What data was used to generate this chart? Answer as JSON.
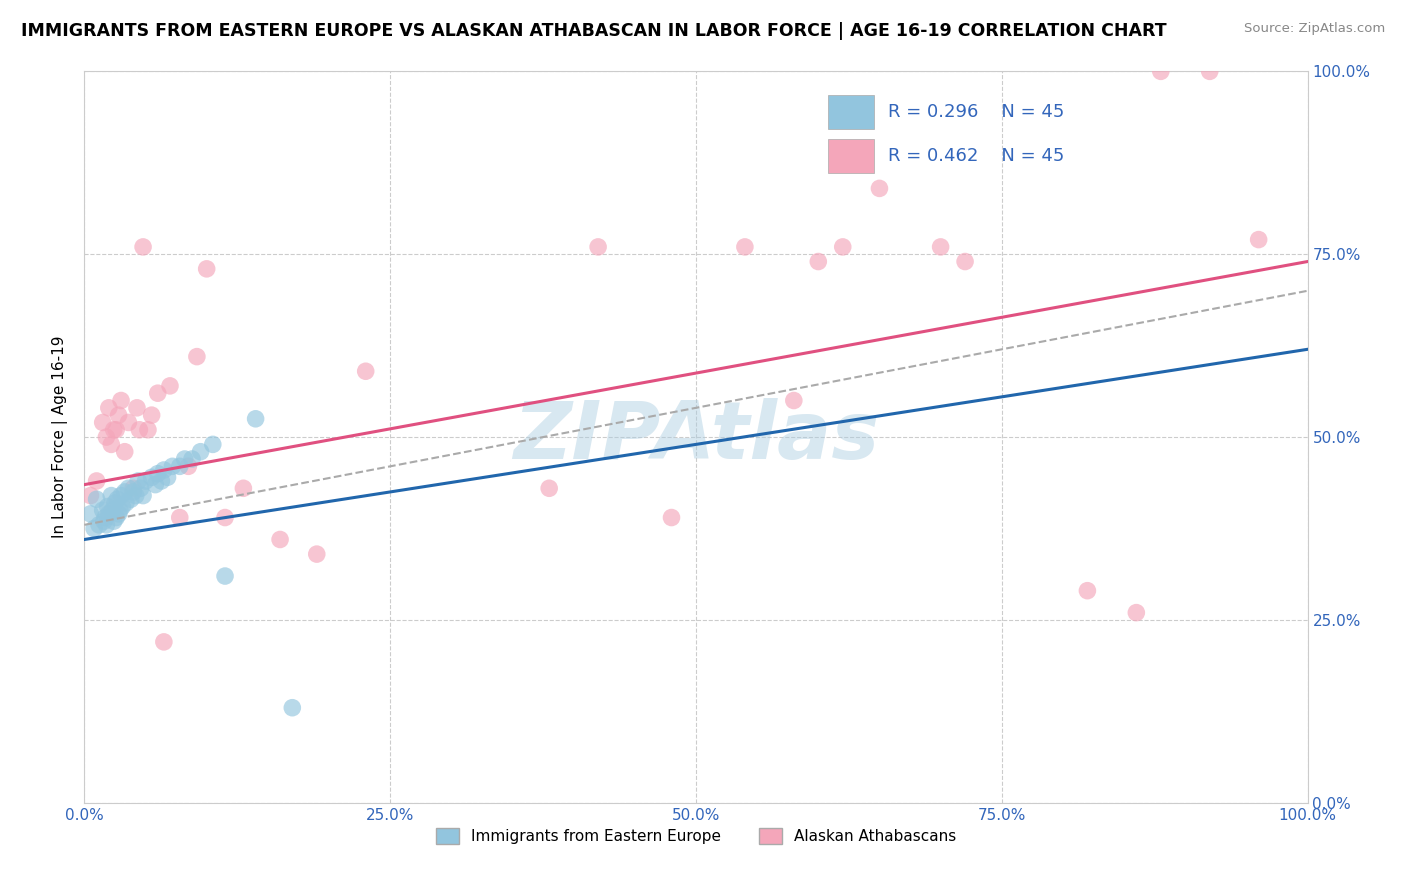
{
  "title": "IMMIGRANTS FROM EASTERN EUROPE VS ALASKAN ATHABASCAN IN LABOR FORCE | AGE 16-19 CORRELATION CHART",
  "source": "Source: ZipAtlas.com",
  "ylabel": "In Labor Force | Age 16-19",
  "xlim": [
    0.0,
    1.0
  ],
  "ylim": [
    0.0,
    1.0
  ],
  "xticks": [
    0.0,
    0.25,
    0.5,
    0.75,
    1.0
  ],
  "yticks": [
    0.0,
    0.25,
    0.5,
    0.75,
    1.0
  ],
  "xtick_labels": [
    "0.0%",
    "25.0%",
    "50.0%",
    "75.0%",
    "100.0%"
  ],
  "ytick_labels": [
    "0.0%",
    "25.0%",
    "50.0%",
    "75.0%",
    "100.0%"
  ],
  "legend1_label": "Immigrants from Eastern Europe",
  "legend2_label": "Alaskan Athabascans",
  "blue_color": "#92c5de",
  "pink_color": "#f4a6ba",
  "blue_line_color": "#2166ac",
  "pink_line_color": "#e05080",
  "dashed_line_color": "#aaaaaa",
  "watermark": "ZIPAtlas",
  "background_color": "#ffffff",
  "grid_color": "#cccccc",
  "blue_scatter_x": [
    0.005,
    0.008,
    0.01,
    0.012,
    0.015,
    0.016,
    0.017,
    0.018,
    0.019,
    0.02,
    0.022,
    0.023,
    0.024,
    0.025,
    0.026,
    0.027,
    0.028,
    0.029,
    0.03,
    0.031,
    0.033,
    0.034,
    0.036,
    0.038,
    0.04,
    0.042,
    0.044,
    0.046,
    0.048,
    0.05,
    0.055,
    0.058,
    0.06,
    0.063,
    0.065,
    0.068,
    0.072,
    0.078,
    0.082,
    0.088,
    0.095,
    0.105,
    0.115,
    0.14,
    0.17
  ],
  "blue_scatter_y": [
    0.395,
    0.375,
    0.415,
    0.38,
    0.4,
    0.385,
    0.39,
    0.38,
    0.405,
    0.395,
    0.42,
    0.4,
    0.385,
    0.41,
    0.39,
    0.415,
    0.395,
    0.4,
    0.42,
    0.405,
    0.425,
    0.41,
    0.43,
    0.415,
    0.425,
    0.42,
    0.44,
    0.43,
    0.42,
    0.44,
    0.445,
    0.435,
    0.45,
    0.44,
    0.455,
    0.445,
    0.46,
    0.46,
    0.47,
    0.47,
    0.48,
    0.49,
    0.31,
    0.525,
    0.13
  ],
  "pink_scatter_x": [
    0.005,
    0.01,
    0.015,
    0.018,
    0.02,
    0.022,
    0.024,
    0.026,
    0.028,
    0.03,
    0.033,
    0.036,
    0.04,
    0.043,
    0.045,
    0.048,
    0.052,
    0.055,
    0.06,
    0.065,
    0.07,
    0.078,
    0.085,
    0.092,
    0.1,
    0.115,
    0.13,
    0.16,
    0.19,
    0.23,
    0.38,
    0.42,
    0.48,
    0.54,
    0.58,
    0.6,
    0.62,
    0.65,
    0.7,
    0.72,
    0.82,
    0.86,
    0.88,
    0.92,
    0.96
  ],
  "pink_scatter_y": [
    0.42,
    0.44,
    0.52,
    0.5,
    0.54,
    0.49,
    0.51,
    0.51,
    0.53,
    0.55,
    0.48,
    0.52,
    0.43,
    0.54,
    0.51,
    0.76,
    0.51,
    0.53,
    0.56,
    0.22,
    0.57,
    0.39,
    0.46,
    0.61,
    0.73,
    0.39,
    0.43,
    0.36,
    0.34,
    0.59,
    0.43,
    0.76,
    0.39,
    0.76,
    0.55,
    0.74,
    0.76,
    0.84,
    0.76,
    0.74,
    0.29,
    0.26,
    1.0,
    1.0,
    0.77
  ],
  "blue_line_y_start": 0.36,
  "blue_line_y_end": 0.62,
  "pink_line_y_start": 0.435,
  "pink_line_y_end": 0.74,
  "dashed_line_y_start": 0.38,
  "dashed_line_y_end": 0.7
}
